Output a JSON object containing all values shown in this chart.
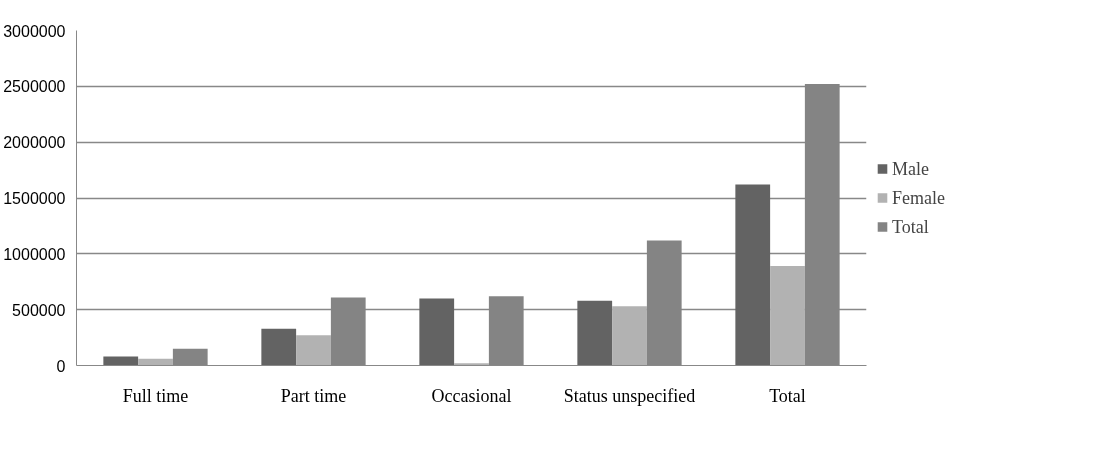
{
  "chart_data": {
    "type": "bar",
    "categories": [
      "Full time",
      "Part time",
      "Occasional",
      "Status unspecified",
      "Total"
    ],
    "series": [
      {
        "name": "Male",
        "color": "#636363",
        "values": [
          80000,
          330000,
          600000,
          580000,
          1620000
        ]
      },
      {
        "name": "Female",
        "color": "#b2b2b2",
        "values": [
          60000,
          270000,
          20000,
          530000,
          890000
        ]
      },
      {
        "name": "Total",
        "color": "#848484",
        "values": [
          150000,
          610000,
          620000,
          1120000,
          2520000
        ]
      }
    ],
    "ylim": [
      0,
      3000000
    ],
    "yticks": [
      0,
      500000,
      1000000,
      1500000,
      2000000,
      2500000,
      3000000
    ],
    "grid": "y",
    "legend": "right"
  }
}
